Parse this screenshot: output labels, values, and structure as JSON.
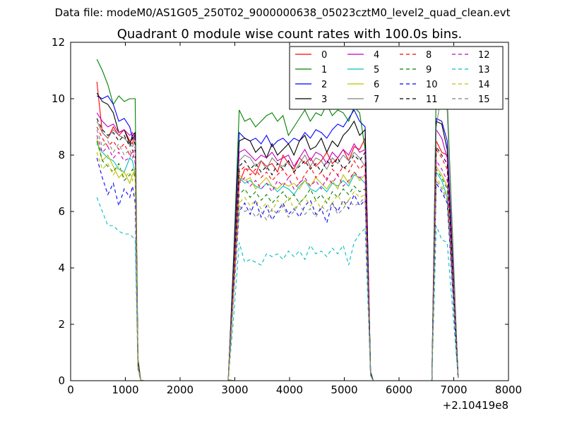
{
  "suptitle": "Data file: modeM0/AS1G05_250T02_9000000638_05023cztM0_level2_quad_clean.evt",
  "chart_data": {
    "type": "line",
    "title": "Quadrant 0 module wise count rates with 100.0s bins.",
    "xlabel": "",
    "ylabel": "",
    "x_offset_label": "+2.10419e8",
    "xlim": [
      0,
      8000
    ],
    "ylim": [
      0,
      12
    ],
    "xticks": [
      "0",
      "1000",
      "2000",
      "3000",
      "4000",
      "5000",
      "6000",
      "7000",
      "8000"
    ],
    "yticks": [
      "0",
      "2",
      "4",
      "6",
      "8",
      "10",
      "12"
    ],
    "grid": false,
    "legend_position": "top-right",
    "series": [
      {
        "name": "0",
        "color": "#ff0000",
        "dash": false,
        "values": [
          10.6,
          8.8,
          8.6,
          9.0,
          8.7,
          8.9,
          8.5,
          8.4,
          8.8,
          0.6,
          0.02,
          0.0,
          0.0,
          0.0,
          0.0,
          0.0,
          0.0,
          0.0,
          0.0,
          0.0,
          0.0,
          0.0,
          0.0,
          0.0,
          0.0,
          0.02,
          3.5,
          7.0,
          7.5,
          7.5,
          7.3,
          7.8,
          7.6,
          7.7,
          7.4,
          8.0,
          7.7,
          7.5,
          7.9,
          7.7,
          7.9,
          7.6,
          7.8,
          8.1,
          7.7,
          7.9,
          8.2,
          7.8,
          8.3,
          8.2,
          8.6,
          0.2,
          0.0,
          0.0,
          0.0,
          0.0,
          0.0,
          0.0,
          0.0,
          0.0,
          0.0,
          0.0,
          0.0,
          0.0,
          8.5,
          8.1,
          8.0,
          0.1
        ]
      },
      {
        "name": "1",
        "color": "#008000",
        "dash": false,
        "values": [
          11.4,
          11.0,
          10.5,
          9.8,
          10.1,
          9.9,
          10.0,
          10.0,
          10.0,
          0.8,
          0.02,
          0.0,
          0.0,
          0.0,
          0.0,
          0.0,
          0.0,
          0.0,
          0.0,
          0.0,
          0.0,
          0.0,
          0.0,
          0.0,
          0.0,
          0.03,
          4.5,
          9.6,
          9.2,
          9.3,
          9.0,
          9.2,
          9.4,
          9.5,
          9.2,
          9.4,
          8.7,
          9.0,
          9.3,
          9.6,
          9.2,
          9.5,
          9.4,
          9.8,
          9.4,
          9.6,
          9.5,
          9.2,
          9.7,
          9.5,
          8.2,
          0.3,
          0.0,
          0.0,
          0.0,
          0.0,
          0.0,
          0.0,
          0.0,
          0.0,
          0.0,
          0.0,
          0.0,
          0.0,
          10.5,
          10.3,
          10.0,
          0.1
        ]
      },
      {
        "name": "2",
        "color": "#0000ff",
        "dash": false,
        "values": [
          10.1,
          10.0,
          10.1,
          9.8,
          9.2,
          9.3,
          9.0,
          8.6,
          8.7,
          0.7,
          0.02,
          0.0,
          0.0,
          0.0,
          0.0,
          0.0,
          0.0,
          0.0,
          0.0,
          0.0,
          0.0,
          0.0,
          0.0,
          0.0,
          0.0,
          0.03,
          4.2,
          8.8,
          8.6,
          8.5,
          8.6,
          8.4,
          8.7,
          8.3,
          8.5,
          8.6,
          8.4,
          8.6,
          8.5,
          8.8,
          8.6,
          8.9,
          8.8,
          8.6,
          8.9,
          9.1,
          9.0,
          9.3,
          9.6,
          9.2,
          9.0,
          0.3,
          0.0,
          0.0,
          0.0,
          0.0,
          0.0,
          0.0,
          0.0,
          0.0,
          0.0,
          0.0,
          0.0,
          0.0,
          9.3,
          9.2,
          8.5,
          0.1
        ]
      },
      {
        "name": "3",
        "color": "#000000",
        "dash": false,
        "values": [
          10.2,
          9.9,
          9.8,
          9.5,
          8.8,
          8.9,
          8.4,
          8.7,
          8.8,
          0.7,
          0.02,
          0.0,
          0.0,
          0.0,
          0.0,
          0.0,
          0.0,
          0.0,
          0.0,
          0.0,
          0.0,
          0.0,
          0.0,
          0.0,
          0.0,
          0.03,
          4.1,
          8.5,
          8.6,
          8.5,
          8.1,
          8.3,
          7.9,
          8.4,
          8.0,
          8.2,
          8.4,
          8.0,
          8.5,
          8.7,
          8.2,
          8.3,
          8.6,
          8.1,
          8.5,
          8.3,
          8.7,
          8.9,
          9.2,
          8.7,
          8.9,
          0.3,
          0.0,
          0.0,
          0.0,
          0.0,
          0.0,
          0.0,
          0.0,
          0.0,
          0.0,
          0.0,
          0.0,
          0.0,
          9.2,
          9.1,
          8.2,
          0.1
        ]
      },
      {
        "name": "4",
        "color": "#bf00bf",
        "dash": false,
        "values": [
          9.5,
          9.2,
          9.0,
          9.1,
          8.8,
          8.9,
          8.7,
          8.8,
          8.5,
          0.6,
          0.02,
          0.0,
          0.0,
          0.0,
          0.0,
          0.0,
          0.0,
          0.0,
          0.0,
          0.0,
          0.0,
          0.0,
          0.0,
          0.0,
          0.0,
          0.02,
          3.9,
          8.1,
          8.2,
          8.0,
          7.8,
          8.0,
          7.9,
          8.1,
          7.8,
          7.9,
          8.0,
          7.6,
          7.9,
          8.2,
          7.8,
          8.1,
          8.0,
          7.7,
          8.1,
          7.9,
          8.2,
          8.0,
          8.4,
          8.1,
          8.2,
          0.2,
          0.0,
          0.0,
          0.0,
          0.0,
          0.0,
          0.0,
          0.0,
          0.0,
          0.0,
          0.0,
          0.0,
          0.0,
          8.9,
          8.6,
          7.9,
          0.1
        ]
      },
      {
        "name": "5",
        "color": "#00bfbf",
        "dash": false,
        "values": [
          8.4,
          8.1,
          7.9,
          7.8,
          7.5,
          7.4,
          7.9,
          7.8,
          7.3,
          0.5,
          0.02,
          0.0,
          0.0,
          0.0,
          0.0,
          0.0,
          0.0,
          0.0,
          0.0,
          0.0,
          0.0,
          0.0,
          0.0,
          0.0,
          0.0,
          0.02,
          3.4,
          7.2,
          7.0,
          7.1,
          6.9,
          6.8,
          7.0,
          6.9,
          6.7,
          6.9,
          6.8,
          6.6,
          6.9,
          7.1,
          6.8,
          6.7,
          6.9,
          6.7,
          7.0,
          6.9,
          7.1,
          6.9,
          7.3,
          7.2,
          7.0,
          0.2,
          0.0,
          0.0,
          0.0,
          0.0,
          0.0,
          0.0,
          0.0,
          0.0,
          0.0,
          0.0,
          0.0,
          0.0,
          7.4,
          7.1,
          6.5,
          0.1
        ]
      },
      {
        "name": "6",
        "color": "#bfbf00",
        "dash": false,
        "values": [
          8.6,
          7.8,
          8.0,
          7.6,
          7.2,
          7.4,
          7.0,
          7.3,
          7.5,
          0.5,
          0.02,
          0.0,
          0.0,
          0.0,
          0.0,
          0.0,
          0.0,
          0.0,
          0.0,
          0.0,
          0.0,
          0.0,
          0.0,
          0.0,
          0.0,
          0.02,
          3.5,
          7.3,
          7.1,
          7.2,
          6.8,
          7.0,
          7.2,
          6.9,
          6.8,
          7.0,
          6.9,
          7.0,
          6.8,
          7.1,
          6.9,
          7.2,
          7.0,
          6.8,
          7.1,
          6.8,
          7.3,
          7.0,
          7.4,
          7.1,
          7.3,
          0.2,
          0.0,
          0.0,
          0.0,
          0.0,
          0.0,
          0.0,
          0.0,
          0.0,
          0.0,
          0.0,
          0.0,
          0.0,
          7.6,
          7.3,
          6.9,
          0.1
        ]
      },
      {
        "name": "7",
        "color": "#808080",
        "dash": false,
        "values": [
          9.2,
          8.8,
          8.6,
          8.9,
          8.7,
          8.6,
          8.4,
          8.3,
          8.5,
          0.6,
          0.02,
          0.0,
          0.0,
          0.0,
          0.0,
          0.0,
          0.0,
          0.0,
          0.0,
          0.0,
          0.0,
          0.0,
          0.0,
          0.0,
          0.0,
          0.02,
          3.8,
          7.8,
          8.0,
          7.9,
          7.6,
          7.8,
          7.5,
          7.9,
          7.7,
          7.6,
          7.8,
          7.4,
          7.7,
          8.0,
          7.6,
          7.9,
          7.8,
          7.5,
          7.9,
          7.7,
          8.0,
          7.8,
          8.1,
          7.9,
          7.6,
          0.2,
          0.0,
          0.0,
          0.0,
          0.0,
          0.0,
          0.0,
          0.0,
          0.0,
          0.0,
          0.0,
          0.0,
          0.0,
          9.0,
          10.3,
          9.6,
          0.1
        ]
      },
      {
        "name": "8",
        "color": "#ff0000",
        "dash": true,
        "values": [
          9.0,
          8.6,
          8.3,
          8.5,
          8.2,
          8.4,
          8.0,
          8.1,
          8.3,
          0.6,
          0.02,
          0.0,
          0.0,
          0.0,
          0.0,
          0.0,
          0.0,
          0.0,
          0.0,
          0.0,
          0.0,
          0.0,
          0.0,
          0.0,
          0.0,
          0.02,
          3.6,
          7.4,
          7.6,
          7.3,
          7.5,
          7.2,
          7.4,
          7.1,
          7.3,
          7.5,
          7.2,
          7.4,
          7.0,
          7.3,
          7.6,
          7.2,
          7.4,
          7.1,
          7.5,
          7.3,
          7.6,
          7.4,
          7.8,
          7.5,
          7.7,
          0.2,
          0.0,
          0.0,
          0.0,
          0.0,
          0.0,
          0.0,
          0.0,
          0.0,
          0.0,
          0.0,
          0.0,
          0.0,
          8.2,
          7.9,
          7.5,
          0.1
        ]
      },
      {
        "name": "9",
        "color": "#008000",
        "dash": true,
        "values": [
          8.5,
          7.8,
          7.6,
          7.4,
          7.7,
          7.1,
          7.3,
          7.5,
          7.2,
          0.5,
          0.02,
          0.0,
          0.0,
          0.0,
          0.0,
          0.0,
          0.0,
          0.0,
          0.0,
          0.0,
          0.0,
          0.0,
          0.0,
          0.0,
          0.0,
          0.02,
          3.3,
          6.6,
          6.8,
          6.5,
          6.7,
          6.4,
          6.6,
          6.3,
          6.5,
          6.7,
          6.4,
          6.6,
          6.3,
          6.5,
          6.8,
          6.4,
          6.6,
          6.3,
          6.7,
          6.5,
          6.8,
          6.6,
          6.9,
          6.7,
          6.8,
          0.2,
          0.0,
          0.0,
          0.0,
          0.0,
          0.0,
          0.0,
          0.0,
          0.0,
          0.0,
          0.0,
          0.0,
          0.0,
          7.5,
          7.2,
          6.8,
          0.1
        ]
      },
      {
        "name": "10",
        "color": "#0000ff",
        "dash": true,
        "values": [
          7.9,
          7.2,
          6.6,
          7.0,
          6.2,
          6.8,
          6.5,
          6.9,
          6.3,
          0.5,
          0.02,
          0.0,
          0.0,
          0.0,
          0.0,
          0.0,
          0.0,
          0.0,
          0.0,
          0.0,
          0.0,
          0.0,
          0.0,
          0.0,
          0.0,
          0.02,
          3.0,
          6.0,
          6.3,
          5.9,
          6.4,
          5.8,
          6.2,
          5.7,
          6.0,
          6.3,
          5.9,
          6.1,
          5.8,
          6.2,
          6.4,
          5.9,
          6.1,
          5.6,
          6.3,
          6.0,
          6.4,
          6.1,
          6.6,
          6.2,
          6.4,
          0.2,
          0.0,
          0.0,
          0.0,
          0.0,
          0.0,
          0.0,
          0.0,
          0.0,
          0.0,
          0.0,
          0.0,
          0.0,
          7.0,
          6.7,
          6.3,
          0.1
        ]
      },
      {
        "name": "11",
        "color": "#000000",
        "dash": true,
        "values": [
          9.3,
          8.9,
          8.7,
          8.8,
          8.5,
          8.7,
          8.3,
          8.6,
          8.4,
          0.6,
          0.02,
          0.0,
          0.0,
          0.0,
          0.0,
          0.0,
          0.0,
          0.0,
          0.0,
          0.0,
          0.0,
          0.0,
          0.0,
          0.0,
          0.0,
          0.02,
          3.7,
          7.6,
          7.8,
          7.5,
          7.7,
          7.4,
          7.6,
          7.3,
          7.7,
          7.5,
          7.8,
          7.4,
          7.6,
          7.8,
          7.5,
          7.7,
          7.4,
          7.8,
          7.6,
          7.9,
          7.5,
          7.7,
          8.0,
          7.8,
          8.1,
          0.2,
          0.0,
          0.0,
          0.0,
          0.0,
          0.0,
          0.0,
          0.0,
          0.0,
          0.0,
          0.0,
          0.0,
          0.0,
          8.3,
          8.0,
          7.7,
          0.1
        ]
      },
      {
        "name": "12",
        "color": "#bf00bf",
        "dash": true,
        "values": [
          8.7,
          8.1,
          8.3,
          7.9,
          8.1,
          7.8,
          7.9,
          8.2,
          7.7,
          0.5,
          0.02,
          0.0,
          0.0,
          0.0,
          0.0,
          0.0,
          0.0,
          0.0,
          0.0,
          0.0,
          0.0,
          0.0,
          0.0,
          0.0,
          0.0,
          0.02,
          3.4,
          7.0,
          7.2,
          6.9,
          7.1,
          6.8,
          7.0,
          6.7,
          7.1,
          6.9,
          7.2,
          6.8,
          7.0,
          7.2,
          6.9,
          7.1,
          6.8,
          7.2,
          7.0,
          7.3,
          6.9,
          7.1,
          7.4,
          7.2,
          7.3,
          0.2,
          0.0,
          0.0,
          0.0,
          0.0,
          0.0,
          0.0,
          0.0,
          0.0,
          0.0,
          0.0,
          0.0,
          0.0,
          7.8,
          7.5,
          7.1,
          0.1
        ]
      },
      {
        "name": "13",
        "color": "#00bfbf",
        "dash": true,
        "values": [
          6.5,
          6.0,
          5.5,
          5.5,
          5.3,
          5.2,
          5.2,
          5.1,
          5.0,
          0.4,
          0.02,
          0.0,
          0.0,
          0.0,
          0.0,
          0.0,
          0.0,
          0.0,
          0.0,
          0.0,
          0.0,
          0.0,
          0.0,
          0.0,
          0.0,
          0.02,
          2.3,
          4.9,
          4.2,
          4.3,
          4.2,
          4.1,
          4.5,
          4.4,
          4.5,
          4.3,
          4.6,
          4.4,
          4.6,
          4.3,
          4.8,
          4.5,
          4.6,
          4.4,
          4.7,
          4.5,
          4.8,
          4.1,
          4.9,
          5.2,
          5.4,
          0.2,
          0.0,
          0.0,
          0.0,
          0.0,
          0.0,
          0.0,
          0.0,
          0.0,
          0.0,
          0.0,
          0.0,
          0.0,
          5.5,
          5.0,
          4.9,
          0.1
        ]
      },
      {
        "name": "14",
        "color": "#bfbf00",
        "dash": true,
        "values": [
          8.1,
          7.5,
          7.7,
          7.3,
          7.6,
          7.2,
          7.4,
          7.1,
          7.5,
          0.5,
          0.02,
          0.0,
          0.0,
          0.0,
          0.0,
          0.0,
          0.0,
          0.0,
          0.0,
          0.0,
          0.0,
          0.0,
          0.0,
          0.0,
          0.0,
          0.02,
          3.1,
          6.3,
          6.5,
          6.2,
          6.4,
          6.1,
          6.3,
          6.0,
          6.4,
          6.2,
          6.5,
          6.1,
          6.3,
          6.5,
          6.2,
          6.4,
          6.1,
          6.5,
          6.3,
          6.6,
          6.2,
          6.4,
          6.7,
          6.5,
          6.6,
          0.2,
          0.0,
          0.0,
          0.0,
          0.0,
          0.0,
          0.0,
          0.0,
          0.0,
          0.0,
          0.0,
          0.0,
          0.0,
          7.2,
          6.9,
          6.5,
          0.1
        ]
      },
      {
        "name": "15",
        "color": "#808080",
        "dash": true,
        "values": [
          8.9,
          8.3,
          8.5,
          8.1,
          8.4,
          8.0,
          8.2,
          7.9,
          8.3,
          0.5,
          0.02,
          0.0,
          0.0,
          0.0,
          0.0,
          0.0,
          0.0,
          0.0,
          0.0,
          0.0,
          0.0,
          0.0,
          0.0,
          0.0,
          0.0,
          0.02,
          3.2,
          6.2,
          6.0,
          6.1,
          5.8,
          6.0,
          5.7,
          6.1,
          5.9,
          6.2,
          5.8,
          6.0,
          6.3,
          5.9,
          6.1,
          5.8,
          6.2,
          6.0,
          6.3,
          5.9,
          6.1,
          6.4,
          6.2,
          6.3,
          6.5,
          0.2,
          0.0,
          0.0,
          0.0,
          0.0,
          0.0,
          0.0,
          0.0,
          0.0,
          0.0,
          0.0,
          0.0,
          0.0,
          7.1,
          6.8,
          6.4,
          0.1
        ]
      }
    ],
    "x": [
      480,
      580,
      680,
      780,
      880,
      980,
      1080,
      1130,
      1180,
      1230,
      1280,
      1330,
      1480,
      1680,
      1880,
      2080,
      2280,
      2480,
      2680,
      2880,
      2900,
      2920,
      2940,
      2960,
      2980,
      2880,
      2980,
      3080,
      3180,
      3280,
      3380,
      3480,
      3580,
      3680,
      3780,
      3880,
      3980,
      4080,
      4180,
      4280,
      4380,
      4480,
      4580,
      4680,
      4780,
      4880,
      4980,
      5080,
      5180,
      5280,
      5380,
      5480,
      5530,
      5680,
      5880,
      6080,
      6280,
      6480,
      6580,
      6600,
      6620,
      6640,
      6660,
      6600,
      6680,
      6780,
      6880,
      7080
    ]
  }
}
